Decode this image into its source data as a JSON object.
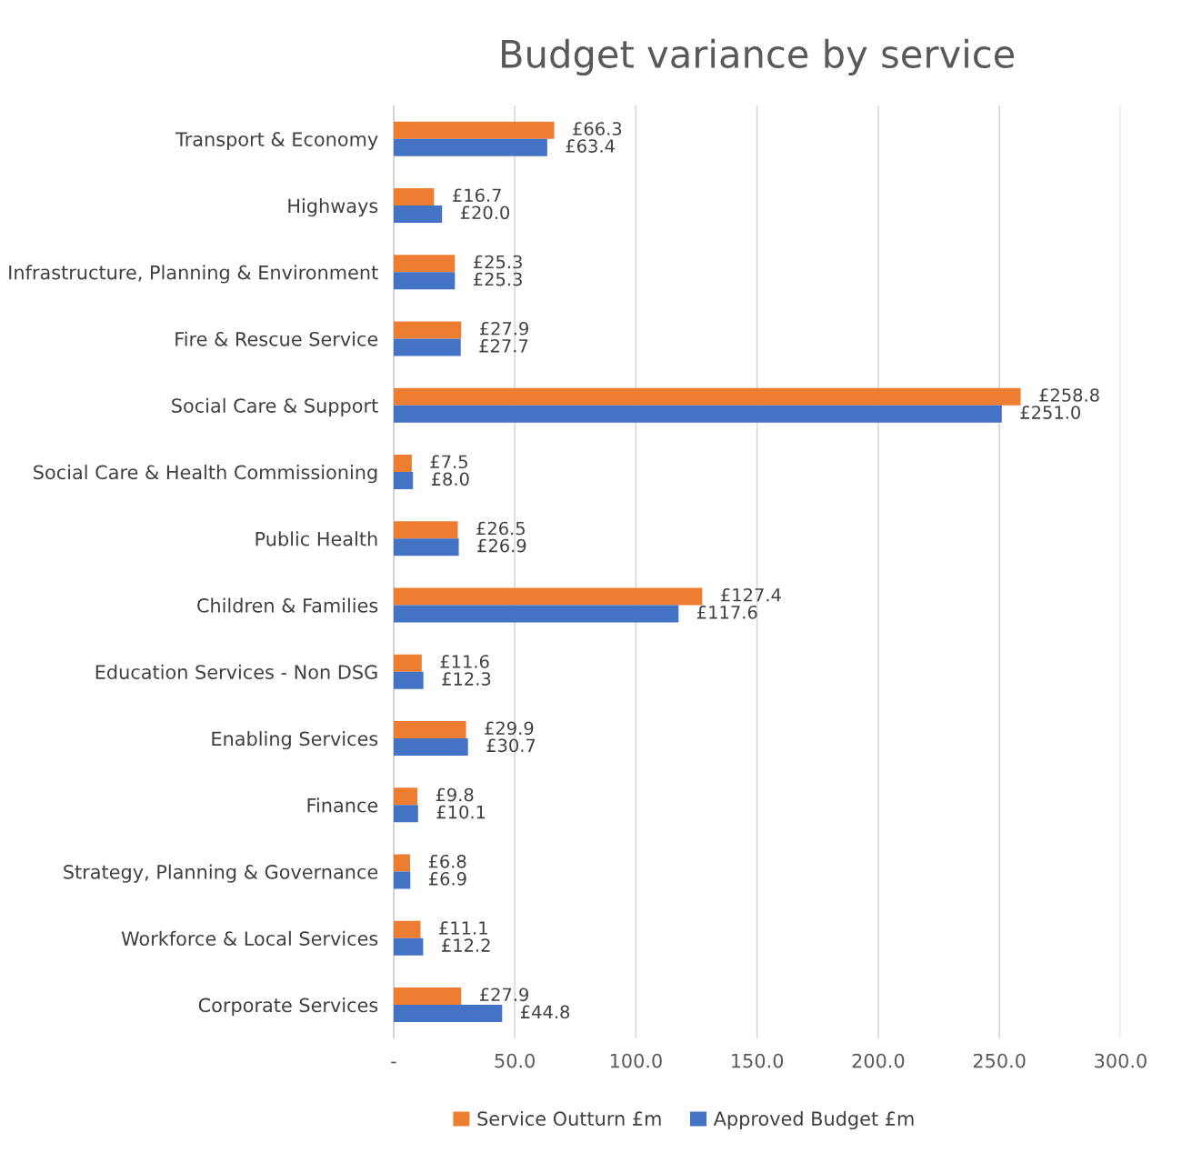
{
  "chart_data": {
    "type": "bar",
    "orientation": "horizontal",
    "title": "Budget variance by service",
    "categories": [
      "Transport & Economy",
      "Highways",
      "Infrastructure, Planning & Environment",
      "Fire & Rescue Service",
      "Social Care & Support",
      "Social Care & Health Commissioning",
      "Public Health",
      "Children & Families",
      "Education Services - Non DSG",
      "Enabling Services",
      "Finance",
      "Strategy, Planning & Governance",
      "Workforce & Local Services",
      "Corporate Services"
    ],
    "series": [
      {
        "name": "Service Outturn £m",
        "color": "#ed7d31",
        "values": [
          66.3,
          16.7,
          25.3,
          27.9,
          258.8,
          7.5,
          26.5,
          127.4,
          11.6,
          29.9,
          9.8,
          6.8,
          11.1,
          27.9
        ],
        "value_labels": [
          "£66.3",
          "£16.7",
          "£25.3",
          "£27.9",
          "£258.8",
          "£7.5",
          "£26.5",
          "£127.4",
          "£11.6",
          "£29.9",
          "£9.8",
          "£6.8",
          "£11.1",
          "£27.9"
        ]
      },
      {
        "name": "Approved Budget £m",
        "color": "#4472c4",
        "values": [
          63.4,
          20.0,
          25.3,
          27.7,
          251.0,
          8.0,
          26.9,
          117.6,
          12.3,
          30.7,
          10.1,
          6.9,
          12.2,
          44.8
        ],
        "value_labels": [
          "£63.4",
          "£20.0",
          "£25.3",
          "£27.7",
          "£251.0",
          "£8.0",
          "£26.9",
          "£117.6",
          "£12.3",
          "£30.7",
          "£10.1",
          "£6.9",
          "£12.2",
          "£44.8"
        ]
      }
    ],
    "xlim": [
      0,
      300
    ],
    "xticks": [
      {
        "value": 0,
        "label": "-"
      },
      {
        "value": 50,
        "label": "50.0"
      },
      {
        "value": 100,
        "label": "100.0"
      },
      {
        "value": 150,
        "label": "150.0"
      },
      {
        "value": 200,
        "label": "200.0"
      },
      {
        "value": 250,
        "label": "250.0"
      },
      {
        "value": 300,
        "label": "300.0"
      }
    ],
    "grid": "x",
    "legend": "bottom"
  }
}
